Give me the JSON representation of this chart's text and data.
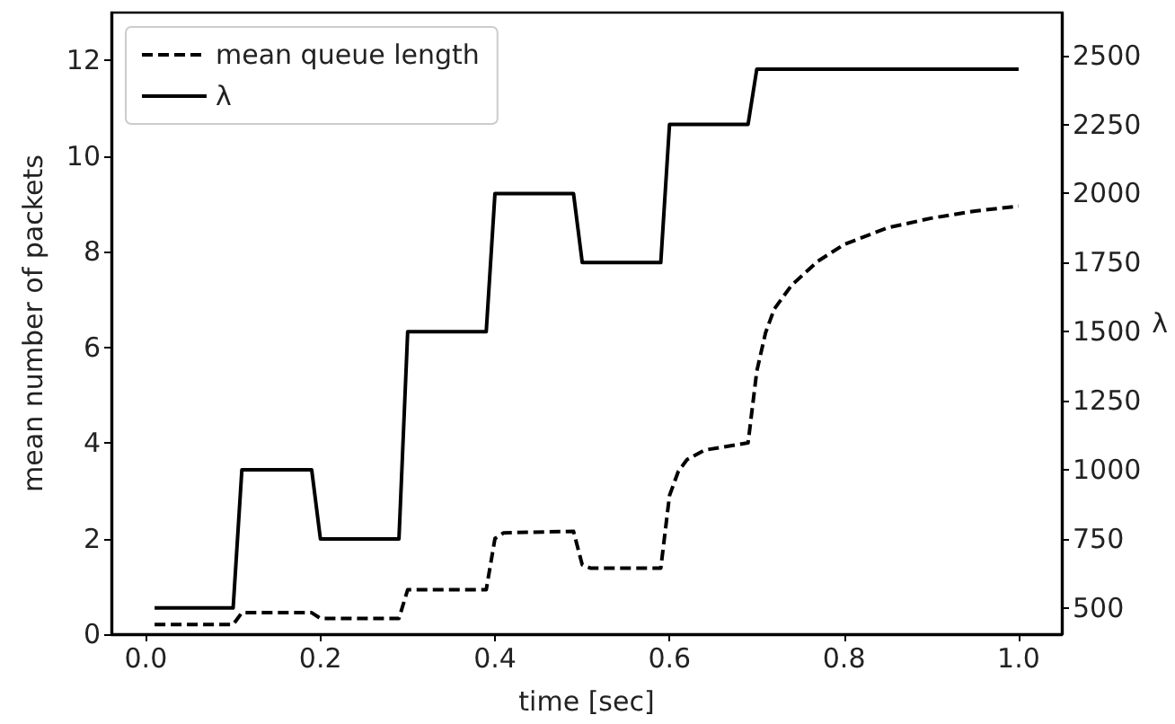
{
  "chart_data": {
    "type": "line",
    "xlabel": "time [sec]",
    "ylabel": "mean number of packets",
    "y2label": "λ",
    "xlim": [
      -0.0395,
      1.0495
    ],
    "xticks": [
      {
        "value": 0,
        "label": "0.0"
      },
      {
        "value": 0.2,
        "label": "0.2"
      },
      {
        "value": 0.4,
        "label": "0.4"
      },
      {
        "value": 0.6,
        "label": "0.6"
      },
      {
        "value": 0.8,
        "label": "0.8"
      },
      {
        "value": 1,
        "label": "1.0"
      }
    ],
    "ylim": [
      0,
      13
    ],
    "yticks": [
      0,
      2,
      4,
      6,
      8,
      10,
      12
    ],
    "y2lim": [
      405,
      2655
    ],
    "y2ticks": [
      500,
      750,
      1000,
      1250,
      1500,
      1750,
      2000,
      2250,
      2500
    ],
    "grid": false,
    "legend": "top left",
    "marker": "none",
    "series": [
      {
        "name": "mean queue length",
        "color": "#000000",
        "line_style": "dashed",
        "x": [
          0.01,
          0.1,
          0.11,
          0.19,
          0.2,
          0.29,
          0.3,
          0.39,
          0.4,
          0.41,
          0.49,
          0.5,
          0.51,
          0.59,
          0.6,
          0.61,
          0.62,
          0.64,
          0.69,
          0.7,
          0.71,
          0.72,
          0.74,
          0.77,
          0.8,
          0.85,
          0.9,
          0.95,
          1.0
        ],
        "values": [
          0.2,
          0.2,
          0.45,
          0.45,
          0.33,
          0.33,
          0.93,
          0.93,
          2.0,
          2.12,
          2.15,
          1.45,
          1.38,
          1.38,
          2.9,
          3.4,
          3.65,
          3.85,
          4.0,
          5.5,
          6.3,
          6.8,
          7.3,
          7.8,
          8.15,
          8.5,
          8.7,
          8.85,
          8.95
        ]
      },
      {
        "name": "λ",
        "color": "#000000",
        "line_style": "solid",
        "axis": "y2",
        "x": [
          0.01,
          0.1,
          0.11,
          0.19,
          0.2,
          0.29,
          0.3,
          0.39,
          0.4,
          0.49,
          0.5,
          0.59,
          0.6,
          0.69,
          0.7,
          1.0
        ],
        "values": [
          500,
          500,
          1000,
          1000,
          750,
          750,
          1500,
          1500,
          2000,
          2000,
          1750,
          1750,
          2250,
          2250,
          2450,
          2450
        ]
      }
    ]
  }
}
